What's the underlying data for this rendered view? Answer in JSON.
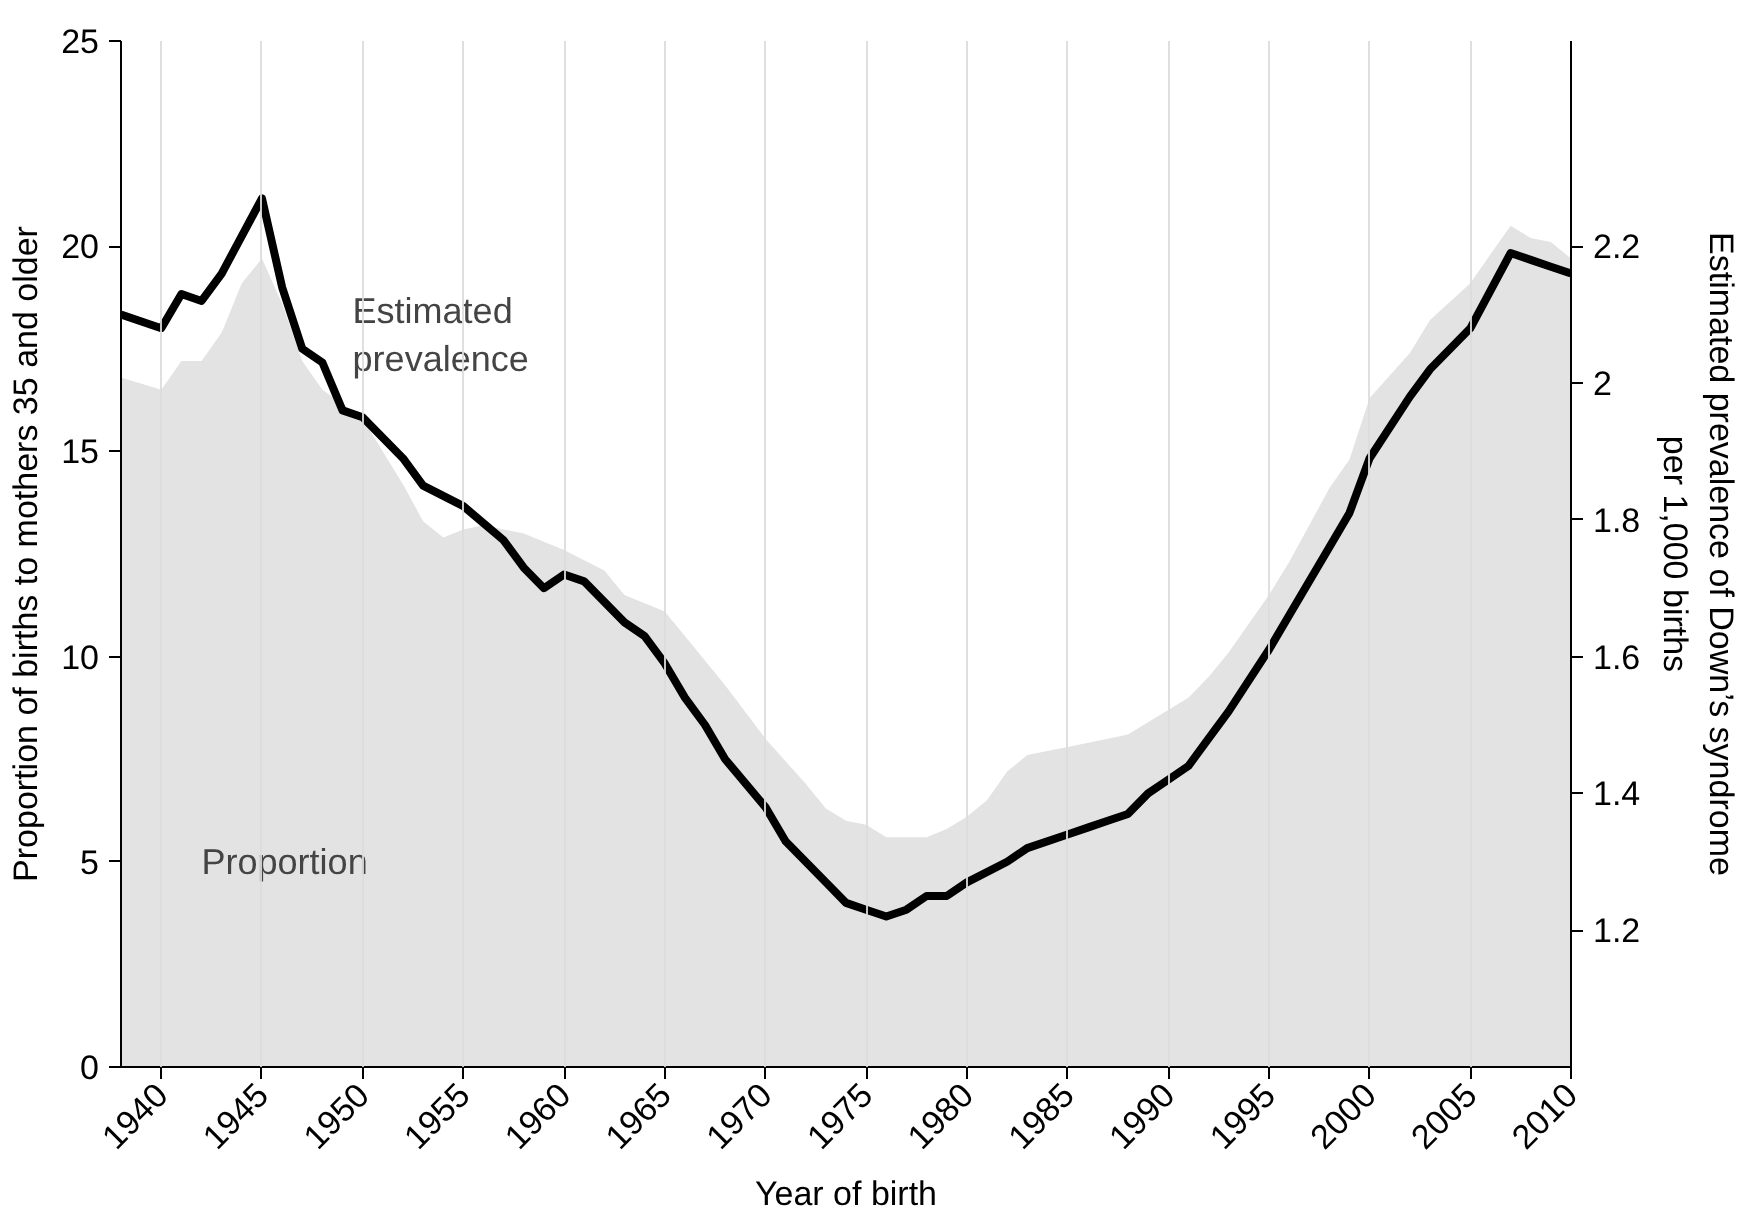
{
  "chart_data": {
    "type": "line",
    "xlabel": "Year of birth",
    "ylabel": "Proportion of births to mothers 35 and older",
    "y2label": "Estimated prevalence of Down’s syndrome\nper 1,000 births",
    "xlim": [
      1938,
      2010
    ],
    "xticks": [
      1940,
      1945,
      1950,
      1955,
      1960,
      1965,
      1970,
      1975,
      1980,
      1985,
      1990,
      1995,
      2000,
      2005,
      2010
    ],
    "ylim": [
      0,
      25
    ],
    "yticks": [
      0,
      5,
      10,
      15,
      20,
      25
    ],
    "y2lim": [
      1.0,
      2.5
    ],
    "y2ticks": [
      1.2,
      1.4,
      1.6,
      1.8,
      2.0,
      2.2
    ],
    "grid": "x",
    "legend": false,
    "series": [
      {
        "name": "Proportion",
        "type": "area",
        "color": "#e3e3e3",
        "x": [
          1938,
          1940,
          1941,
          1942,
          1943,
          1944,
          1945,
          1946,
          1947,
          1948,
          1950,
          1951,
          1952,
          1953,
          1954,
          1955,
          1956,
          1958,
          1960,
          1962,
          1963,
          1965,
          1966,
          1968,
          1970,
          1972,
          1973,
          1974,
          1975,
          1976,
          1978,
          1979,
          1980,
          1981,
          1982,
          1983,
          1985,
          1987,
          1988,
          1989,
          1990,
          1991,
          1992,
          1993,
          1995,
          1996,
          1998,
          1999,
          2000,
          2002,
          2003,
          2005,
          2007,
          2008,
          2009,
          2010
        ],
        "values": [
          16.8,
          16.5,
          17.2,
          17.2,
          17.9,
          19.1,
          19.7,
          18.6,
          17.2,
          16.5,
          15.8,
          15.0,
          14.2,
          13.3,
          12.9,
          13.1,
          13.2,
          13.0,
          12.6,
          12.1,
          11.5,
          11.1,
          10.5,
          9.3,
          8.0,
          6.9,
          6.3,
          6.0,
          5.9,
          5.6,
          5.6,
          5.8,
          6.1,
          6.5,
          7.2,
          7.6,
          7.8,
          8.0,
          8.1,
          8.4,
          8.7,
          9.0,
          9.5,
          10.1,
          11.5,
          12.3,
          14.1,
          14.8,
          16.3,
          17.4,
          18.2,
          19.1,
          20.5,
          20.2,
          20.1,
          19.7
        ]
      },
      {
        "name": "Estimated prevalence",
        "axis": "y2",
        "color": "#000000",
        "x": [
          1938,
          1940,
          1941,
          1942,
          1943,
          1945,
          1946,
          1947,
          1948,
          1949,
          1950,
          1952,
          1953,
          1955,
          1957,
          1958,
          1959,
          1960,
          1961,
          1963,
          1964,
          1965,
          1966,
          1967,
          1968,
          1970,
          1971,
          1972,
          1973,
          1974,
          1975,
          1976,
          1977,
          1978,
          1979,
          1980,
          1982,
          1983,
          1985,
          1986,
          1987,
          1988,
          1989,
          1990,
          1991,
          1992,
          1993,
          1995,
          1996,
          1998,
          1999,
          2000,
          2002,
          2003,
          2005,
          2007,
          2008,
          2009,
          2010
        ],
        "values": [
          2.1,
          2.08,
          2.13,
          2.12,
          2.16,
          2.27,
          2.14,
          2.05,
          2.03,
          1.96,
          1.95,
          1.89,
          1.85,
          1.82,
          1.77,
          1.73,
          1.7,
          1.72,
          1.71,
          1.65,
          1.63,
          1.59,
          1.54,
          1.5,
          1.45,
          1.38,
          1.33,
          1.3,
          1.27,
          1.24,
          1.23,
          1.22,
          1.23,
          1.25,
          1.25,
          1.27,
          1.3,
          1.32,
          1.34,
          1.35,
          1.36,
          1.37,
          1.4,
          1.42,
          1.44,
          1.48,
          1.52,
          1.61,
          1.66,
          1.76,
          1.81,
          1.89,
          1.98,
          2.02,
          2.08,
          2.19,
          2.18,
          2.17,
          2.16
        ]
      }
    ]
  }
}
